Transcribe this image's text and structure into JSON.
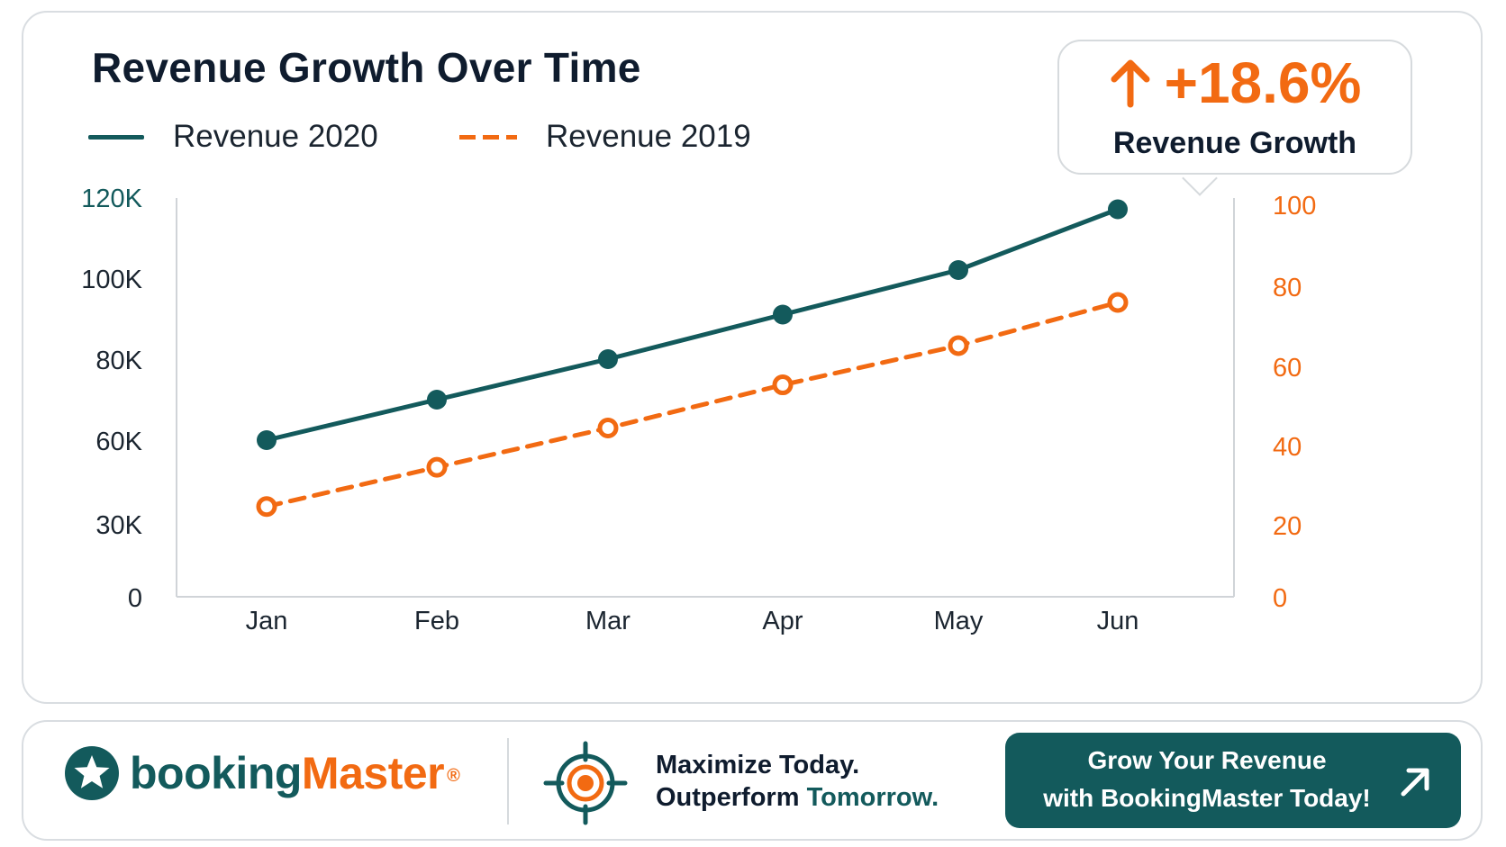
{
  "header": {
    "title": "Revenue Growth Over Time"
  },
  "legend": {
    "series_2020": "Revenue 2020",
    "series_2019": "Revenue 2019"
  },
  "callout": {
    "value": "+18.6%",
    "label": "Revenue Growth",
    "icon": "arrow-up-icon"
  },
  "colors": {
    "teal": "#135a5c",
    "orange": "#f26a12",
    "dark_text": "#0f1c2e"
  },
  "chart_data": {
    "type": "line",
    "title": "Revenue Growth Over Time",
    "categories": [
      "Jan",
      "Feb",
      "Mar",
      "Apr",
      "May",
      "Jun"
    ],
    "left_axis": {
      "tick_labels": [
        "0",
        "30K",
        "60K",
        "80K",
        "100K",
        "120K"
      ]
    },
    "right_axis": {
      "tick_labels": [
        "0",
        "20",
        "40",
        "60",
        "80",
        "100"
      ],
      "ylim": [
        0,
        100
      ]
    },
    "series": [
      {
        "name": "Revenue 2020",
        "axis": "left",
        "style": "solid",
        "color": "#135a5c",
        "values": [
          60000,
          70000,
          80000,
          91000,
          102000,
          117000
        ]
      },
      {
        "name": "Revenue 2019",
        "axis": "right",
        "style": "dashed",
        "color": "#f26a12",
        "values": [
          23,
          33,
          43,
          54,
          64,
          75
        ]
      }
    ],
    "legend_position": "top-left",
    "grid": false
  },
  "footer": {
    "brand_part1": "booking",
    "brand_part2": "Master",
    "brand_reg": "®",
    "brand_icon": "star-badge-icon",
    "target_icon": "target-icon",
    "tagline_line1": "Maximize Today.",
    "tagline_line2_prefix": "Outperform",
    "tagline_line2_accent": "Tomorrow.",
    "cta_line1": "Grow Your Revenue",
    "cta_line2": "with BookingMaster Today!",
    "cta_icon": "arrow-up-right-icon"
  }
}
